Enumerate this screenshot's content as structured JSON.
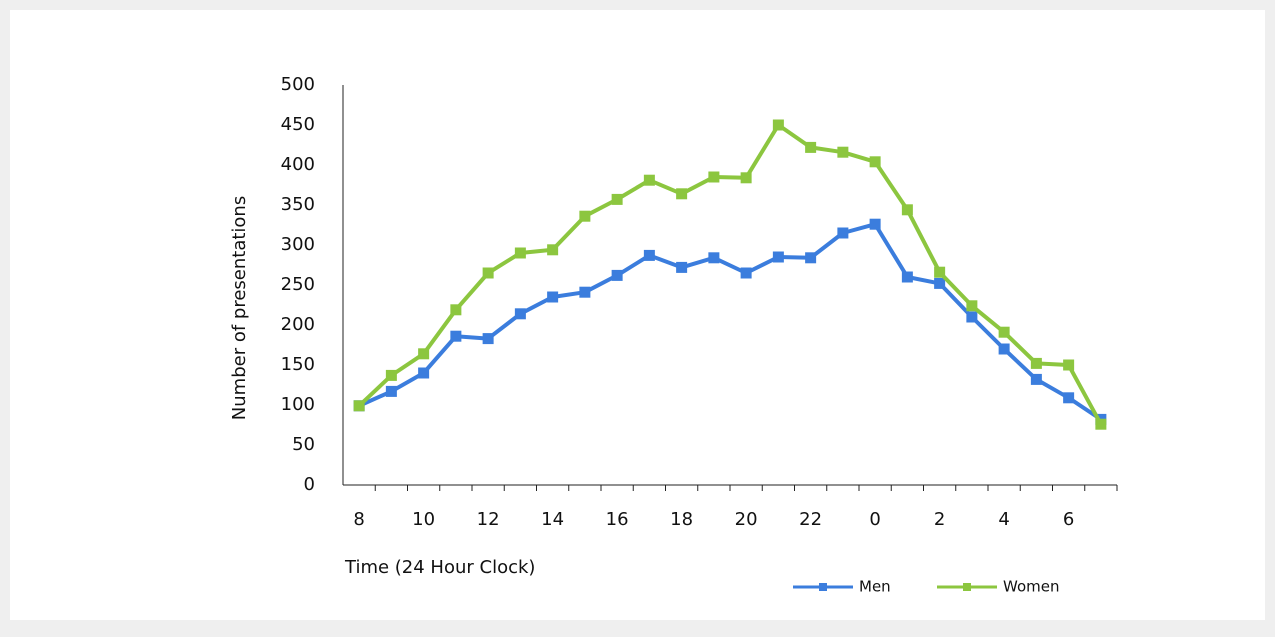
{
  "chart_data": {
    "type": "line",
    "y_label": "Number of presentations",
    "x_label": "Time (24 Hour Clock)",
    "categories": [
      "8",
      null,
      "10",
      null,
      "12",
      null,
      "14",
      null,
      "16",
      null,
      "18",
      null,
      "20",
      null,
      "22",
      null,
      "0",
      null,
      "2",
      null,
      "4",
      null,
      "6",
      null
    ],
    "series": [
      {
        "name": "Men",
        "color": "#3b7ddd",
        "values": [
          99,
          117,
          140,
          186,
          183,
          214,
          235,
          241,
          262,
          287,
          272,
          284,
          265,
          285,
          284,
          315,
          326,
          260,
          252,
          210,
          170,
          132,
          109,
          82
        ]
      },
      {
        "name": "Women",
        "color": "#8cc63f",
        "values": [
          99,
          137,
          164,
          219,
          265,
          290,
          294,
          336,
          357,
          381,
          364,
          385,
          384,
          450,
          422,
          416,
          404,
          344,
          266,
          224,
          191,
          152,
          150,
          76
        ]
      }
    ],
    "ylim": [
      0,
      500
    ],
    "yticks": [
      0,
      50,
      100,
      150,
      200,
      250,
      300,
      350,
      400,
      450,
      500
    ],
    "grid": false,
    "legend": "bottom-right"
  }
}
